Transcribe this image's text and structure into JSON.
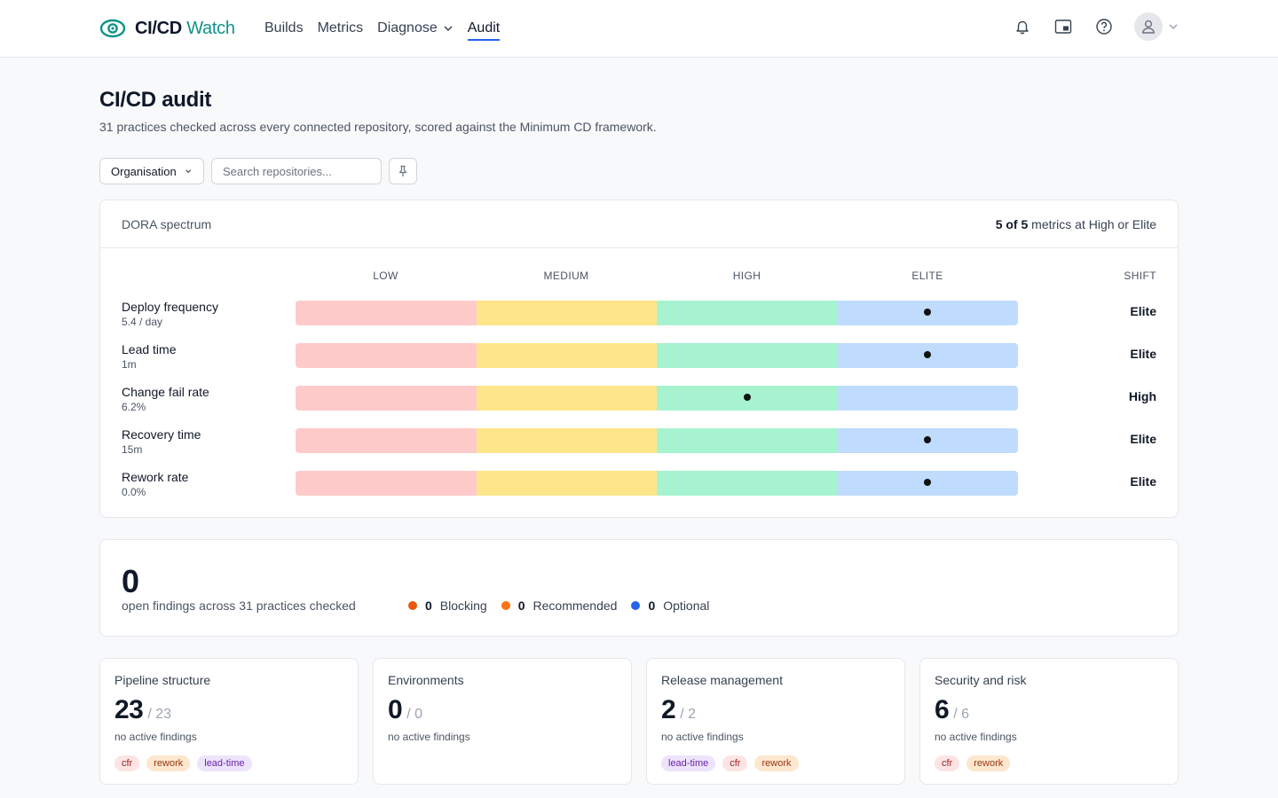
{
  "header": {
    "brand_main": "CI/CD",
    "brand_accent": "Watch",
    "nav": [
      {
        "label": "Builds",
        "active": false
      },
      {
        "label": "Metrics",
        "active": false
      },
      {
        "label": "Diagnose",
        "active": false
      },
      {
        "label": "Audit",
        "active": true
      }
    ],
    "icons": [
      "bell-icon",
      "picture-in-picture-icon",
      "help-icon",
      "user-avatar-icon",
      "chevron-down-icon"
    ]
  },
  "page": {
    "title": "CI/CD audit",
    "subtitle": "31 practices checked across every connected repository, scored against the Minimum CD framework."
  },
  "filters": {
    "org_label": "Organisation",
    "search_placeholder": "Search repositories..."
  },
  "dora": {
    "title": "DORA spectrum",
    "summary_bold": "5 of 5",
    "summary_rest": "metrics at High or Elite",
    "columns": [
      "LOW",
      "MEDIUM",
      "HIGH",
      "ELITE"
    ],
    "shift_header": "SHIFT",
    "colors": {
      "low": "#fecaca",
      "medium": "#fde68a",
      "high": "#a7f3d0",
      "elite": "#bfdbfe"
    },
    "rows": [
      {
        "name": "Deploy frequency",
        "value": "5.4 / day",
        "level": "Elite"
      },
      {
        "name": "Lead time",
        "value": "1m",
        "level": "Elite"
      },
      {
        "name": "Change fail rate",
        "value": "6.2%",
        "level": "High"
      },
      {
        "name": "Recovery time",
        "value": "15m",
        "level": "Elite"
      },
      {
        "name": "Rework rate",
        "value": "0.0%",
        "level": "Elite"
      }
    ]
  },
  "findings": {
    "count": "0",
    "subtitle": "open findings across 31 practices checked",
    "legend": [
      {
        "count": "0",
        "label": "Blocking",
        "color": "#ea580c"
      },
      {
        "count": "0",
        "label": "Recommended",
        "color": "#f97316"
      },
      {
        "count": "0",
        "label": "Optional",
        "color": "#2563eb"
      }
    ]
  },
  "categories": [
    {
      "title": "Pipeline structure",
      "score": "23",
      "total": "/ 23",
      "note": "no active findings",
      "tags": [
        "cfr",
        "rework",
        "lead-time"
      ]
    },
    {
      "title": "Environments",
      "score": "0",
      "total": "/ 0",
      "note": "no active findings",
      "tags": []
    },
    {
      "title": "Release management",
      "score": "2",
      "total": "/ 2",
      "note": "no active findings",
      "tags": [
        "lead-time",
        "cfr",
        "rework"
      ]
    },
    {
      "title": "Security and risk",
      "score": "6",
      "total": "/ 6",
      "note": "no active findings",
      "tags": [
        "cfr",
        "rework"
      ]
    }
  ]
}
